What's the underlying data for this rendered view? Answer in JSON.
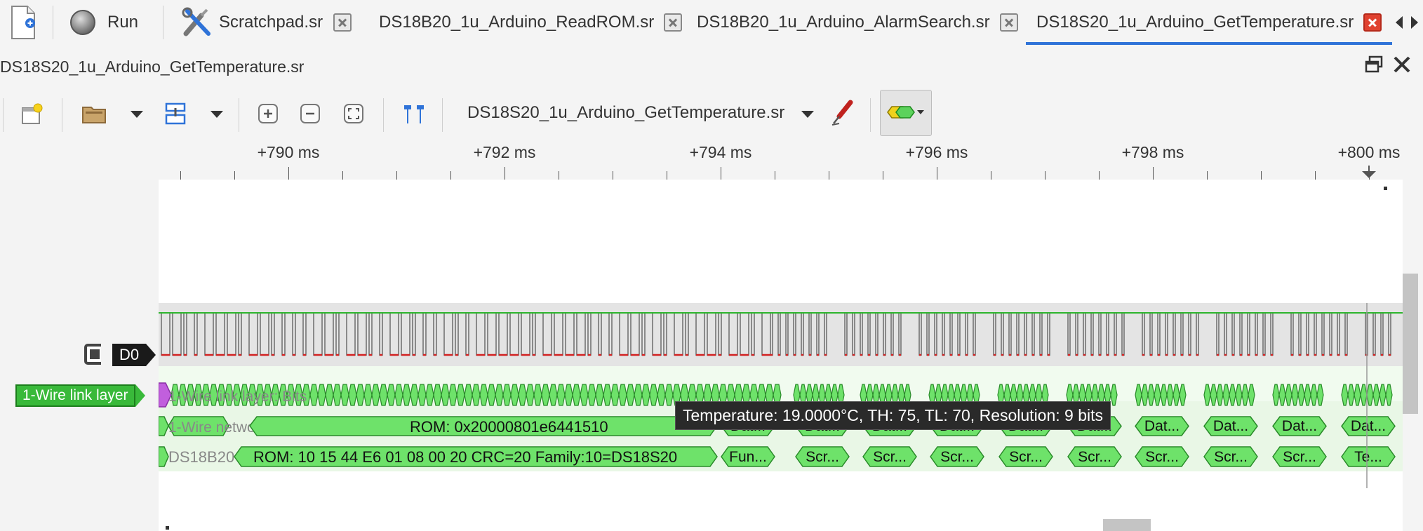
{
  "toolbar_top": {
    "new_session_icon": "new-document-icon",
    "run_icon": "record-circle-icon",
    "run_label": "Run",
    "settings_icon": "tools-icon"
  },
  "tabs": [
    {
      "label": "Scratchpad.sr",
      "active": false
    },
    {
      "label": "DS18B20_1u_Arduino_ReadROM.sr",
      "active": false
    },
    {
      "label": "DS18B20_1u_Arduino_AlarmSearch.sr",
      "active": false
    },
    {
      "label": "DS18S20_1u_Arduino_GetTemperature.sr",
      "active": true
    }
  ],
  "document": {
    "title": "DS18S20_1u_Arduino_GetTemperature.sr",
    "session_name": "DS18S20_1u_Arduino_GetTemperature.sr"
  },
  "ruler": {
    "labels": [
      "+790 ms",
      "+792 ms",
      "+794 ms",
      "+796 ms",
      "+798 ms",
      "+800 ms"
    ]
  },
  "channels": {
    "d0_label": "D0",
    "link_layer_label": "1-Wire link layer",
    "link_row_text": "1-Wire link layer: Bits",
    "network_row_text": "1-Wire network layer",
    "network_rom": "ROM: 0x20000801e6441510",
    "device_row_text": "DS18B20",
    "device_rom": "ROM: 10 15 44 E6 01 08 00 20 CRC=20 Family:10=DS18S20"
  },
  "annotations": {
    "network_boxes": [
      "Dat...",
      "Dat...",
      "Dat...",
      "Dat...",
      "Dat...",
      "Dat...",
      "Dat...",
      "Dat...",
      "Dat...",
      "Dat..."
    ],
    "device_boxes": [
      "Fun...",
      "Scr...",
      "Scr...",
      "Scr...",
      "Scr...",
      "Scr...",
      "Scr...",
      "Scr...",
      "Scr...",
      "Te..."
    ]
  },
  "tooltip": {
    "text": "Temperature: 19.0000°C, TH: 75, TL: 70, Resolution: 9 bits"
  },
  "colors": {
    "accent_tab": "#2f73d8",
    "annotation_green": "#6ee26a",
    "annotation_border": "#2a8a2a",
    "trace_high": "#2db52d",
    "trace_low": "#d22222",
    "close_active": "#e0412f"
  }
}
